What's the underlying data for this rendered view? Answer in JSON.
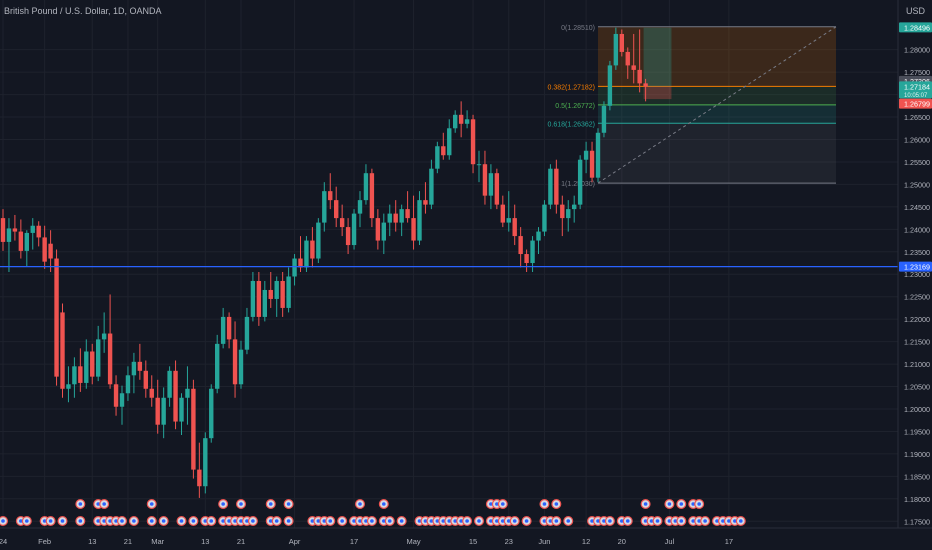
{
  "header": {
    "symbol_title": "British Pound / U.S. Dollar, 1D, OANDA",
    "currency": "USD"
  },
  "colors": {
    "background": "#131722",
    "up": "#26a69a",
    "down": "#ef5350",
    "axis_text": "#b2b5be",
    "support_line": "#2962ff"
  },
  "chart_data": {
    "type": "candlestick",
    "title": "British Pound / U.S. Dollar, 1D, OANDA",
    "y_axis": {
      "label": "USD",
      "ylim": [
        1.1735,
        1.2875
      ],
      "ticks": [
        1.28,
        1.275,
        1.27,
        1.265,
        1.26,
        1.255,
        1.25,
        1.245,
        1.24,
        1.235,
        1.23,
        1.225,
        1.22,
        1.215,
        1.21,
        1.205,
        1.2,
        1.195,
        1.19,
        1.185,
        1.18,
        1.175
      ]
    },
    "x_axis": {
      "ticks": [
        {
          "label": "24",
          "index": 0
        },
        {
          "label": "Feb",
          "index": 7
        },
        {
          "label": "13",
          "index": 15
        },
        {
          "label": "21",
          "index": 21
        },
        {
          "label": "Mar",
          "index": 26
        },
        {
          "label": "13",
          "index": 34
        },
        {
          "label": "21",
          "index": 40
        },
        {
          "label": "Apr",
          "index": 49
        },
        {
          "label": "17",
          "index": 59
        },
        {
          "label": "May",
          "index": 69
        },
        {
          "label": "15",
          "index": 79
        },
        {
          "label": "23",
          "index": 85
        },
        {
          "label": "Jun",
          "index": 91
        },
        {
          "label": "12",
          "index": 98
        },
        {
          "label": "20",
          "index": 104
        },
        {
          "label": "Jul",
          "index": 112
        },
        {
          "label": "17",
          "index": 122
        }
      ]
    },
    "candles": [
      {
        "o": 1.2425,
        "h": 1.2445,
        "l": 1.2352,
        "c": 1.2372
      },
      {
        "o": 1.2372,
        "h": 1.2425,
        "l": 1.2305,
        "c": 1.2402
      },
      {
        "o": 1.2402,
        "h": 1.2432,
        "l": 1.2375,
        "c": 1.2395
      },
      {
        "o": 1.2395,
        "h": 1.2422,
        "l": 1.2335,
        "c": 1.2352
      },
      {
        "o": 1.2352,
        "h": 1.2398,
        "l": 1.2318,
        "c": 1.2392
      },
      {
        "o": 1.2392,
        "h": 1.2425,
        "l": 1.2355,
        "c": 1.2408
      },
      {
        "o": 1.2408,
        "h": 1.2418,
        "l": 1.2362,
        "c": 1.2382
      },
      {
        "o": 1.2382,
        "h": 1.2408,
        "l": 1.2312,
        "c": 1.2328
      },
      {
        "o": 1.2368,
        "h": 1.2398,
        "l": 1.2305,
        "c": 1.2335
      },
      {
        "o": 1.2335,
        "h": 1.2355,
        "l": 1.2052,
        "c": 1.2072
      },
      {
        "o": 1.2215,
        "h": 1.2235,
        "l": 1.2025,
        "c": 1.2045
      },
      {
        "o": 1.2045,
        "h": 1.2095,
        "l": 1.2015,
        "c": 1.2055
      },
      {
        "o": 1.2055,
        "h": 1.2115,
        "l": 1.2025,
        "c": 1.2095
      },
      {
        "o": 1.2095,
        "h": 1.2135,
        "l": 1.2038,
        "c": 1.2058
      },
      {
        "o": 1.2058,
        "h": 1.2155,
        "l": 1.2045,
        "c": 1.2128
      },
      {
        "o": 1.2128,
        "h": 1.2145,
        "l": 1.2055,
        "c": 1.2072
      },
      {
        "o": 1.2072,
        "h": 1.2185,
        "l": 1.2062,
        "c": 1.2155
      },
      {
        "o": 1.2155,
        "h": 1.2215,
        "l": 1.2125,
        "c": 1.2168
      },
      {
        "o": 1.2168,
        "h": 1.2255,
        "l": 1.2045,
        "c": 1.2055
      },
      {
        "o": 1.2055,
        "h": 1.2075,
        "l": 1.1985,
        "c": 1.2005
      },
      {
        "o": 1.2005,
        "h": 1.2052,
        "l": 1.1965,
        "c": 1.2035
      },
      {
        "o": 1.2035,
        "h": 1.2095,
        "l": 1.2018,
        "c": 1.2075
      },
      {
        "o": 1.2075,
        "h": 1.2125,
        "l": 1.2035,
        "c": 1.2105
      },
      {
        "o": 1.2105,
        "h": 1.2145,
        "l": 1.2065,
        "c": 1.2085
      },
      {
        "o": 1.2085,
        "h": 1.2108,
        "l": 1.2025,
        "c": 1.2045
      },
      {
        "o": 1.2045,
        "h": 1.2075,
        "l": 1.2005,
        "c": 1.2025
      },
      {
        "o": 1.2025,
        "h": 1.2065,
        "l": 1.1945,
        "c": 1.1965
      },
      {
        "o": 1.1965,
        "h": 1.2048,
        "l": 1.1935,
        "c": 1.2025
      },
      {
        "o": 1.2025,
        "h": 1.2095,
        "l": 1.2005,
        "c": 1.2085
      },
      {
        "o": 1.2085,
        "h": 1.2108,
        "l": 1.1955,
        "c": 1.1972
      },
      {
        "o": 1.1972,
        "h": 1.2035,
        "l": 1.1942,
        "c": 1.2025
      },
      {
        "o": 1.2025,
        "h": 1.2095,
        "l": 1.1965,
        "c": 1.2045
      },
      {
        "o": 1.2045,
        "h": 1.2065,
        "l": 1.1845,
        "c": 1.1865
      },
      {
        "o": 1.1865,
        "h": 1.1925,
        "l": 1.1802,
        "c": 1.1828
      },
      {
        "o": 1.1828,
        "h": 1.1948,
        "l": 1.1812,
        "c": 1.1935
      },
      {
        "o": 1.1935,
        "h": 1.2055,
        "l": 1.1925,
        "c": 1.2045
      },
      {
        "o": 1.2045,
        "h": 1.2165,
        "l": 1.2035,
        "c": 1.2145
      },
      {
        "o": 1.2145,
        "h": 1.2225,
        "l": 1.2135,
        "c": 1.2205
      },
      {
        "o": 1.2205,
        "h": 1.2215,
        "l": 1.2135,
        "c": 1.2155
      },
      {
        "o": 1.2155,
        "h": 1.2195,
        "l": 1.2025,
        "c": 1.2055
      },
      {
        "o": 1.2055,
        "h": 1.2152,
        "l": 1.2045,
        "c": 1.2132
      },
      {
        "o": 1.2132,
        "h": 1.2225,
        "l": 1.2122,
        "c": 1.2205
      },
      {
        "o": 1.2205,
        "h": 1.2305,
        "l": 1.2195,
        "c": 1.2285
      },
      {
        "o": 1.2285,
        "h": 1.2305,
        "l": 1.2185,
        "c": 1.2205
      },
      {
        "o": 1.2205,
        "h": 1.2285,
        "l": 1.2195,
        "c": 1.2265
      },
      {
        "o": 1.2265,
        "h": 1.2305,
        "l": 1.2225,
        "c": 1.2245
      },
      {
        "o": 1.2245,
        "h": 1.2295,
        "l": 1.2205,
        "c": 1.2285
      },
      {
        "o": 1.2285,
        "h": 1.2305,
        "l": 1.2205,
        "c": 1.2225
      },
      {
        "o": 1.2225,
        "h": 1.2315,
        "l": 1.2215,
        "c": 1.2295
      },
      {
        "o": 1.2295,
        "h": 1.2345,
        "l": 1.2275,
        "c": 1.2335
      },
      {
        "o": 1.2335,
        "h": 1.2385,
        "l": 1.2305,
        "c": 1.2315
      },
      {
        "o": 1.2315,
        "h": 1.2385,
        "l": 1.2305,
        "c": 1.2375
      },
      {
        "o": 1.2375,
        "h": 1.2405,
        "l": 1.2315,
        "c": 1.2335
      },
      {
        "o": 1.2335,
        "h": 1.2425,
        "l": 1.2325,
        "c": 1.2415
      },
      {
        "o": 1.2415,
        "h": 1.2505,
        "l": 1.2395,
        "c": 1.2485
      },
      {
        "o": 1.2485,
        "h": 1.2525,
        "l": 1.2445,
        "c": 1.2465
      },
      {
        "o": 1.2465,
        "h": 1.2495,
        "l": 1.2405,
        "c": 1.2425
      },
      {
        "o": 1.2425,
        "h": 1.2455,
        "l": 1.2385,
        "c": 1.2405
      },
      {
        "o": 1.2405,
        "h": 1.2425,
        "l": 1.2345,
        "c": 1.2365
      },
      {
        "o": 1.2365,
        "h": 1.2445,
        "l": 1.2355,
        "c": 1.2435
      },
      {
        "o": 1.2435,
        "h": 1.2485,
        "l": 1.2405,
        "c": 1.2465
      },
      {
        "o": 1.2465,
        "h": 1.2545,
        "l": 1.2455,
        "c": 1.2525
      },
      {
        "o": 1.2525,
        "h": 1.2535,
        "l": 1.2405,
        "c": 1.2425
      },
      {
        "o": 1.2425,
        "h": 1.2445,
        "l": 1.2355,
        "c": 1.2375
      },
      {
        "o": 1.2375,
        "h": 1.2435,
        "l": 1.2345,
        "c": 1.2415
      },
      {
        "o": 1.2415,
        "h": 1.2455,
        "l": 1.2385,
        "c": 1.2435
      },
      {
        "o": 1.2435,
        "h": 1.2465,
        "l": 1.2395,
        "c": 1.2415
      },
      {
        "o": 1.2415,
        "h": 1.2455,
        "l": 1.2385,
        "c": 1.2445
      },
      {
        "o": 1.2445,
        "h": 1.2485,
        "l": 1.2415,
        "c": 1.2425
      },
      {
        "o": 1.2425,
        "h": 1.2475,
        "l": 1.2355,
        "c": 1.2375
      },
      {
        "o": 1.2375,
        "h": 1.2485,
        "l": 1.2365,
        "c": 1.2465
      },
      {
        "o": 1.2465,
        "h": 1.2505,
        "l": 1.2435,
        "c": 1.2455
      },
      {
        "o": 1.2455,
        "h": 1.2555,
        "l": 1.2445,
        "c": 1.2535
      },
      {
        "o": 1.2535,
        "h": 1.2595,
        "l": 1.2525,
        "c": 1.2585
      },
      {
        "o": 1.2585,
        "h": 1.2615,
        "l": 1.2555,
        "c": 1.2565
      },
      {
        "o": 1.2565,
        "h": 1.2645,
        "l": 1.2555,
        "c": 1.2625
      },
      {
        "o": 1.2625,
        "h": 1.2665,
        "l": 1.2615,
        "c": 1.2655
      },
      {
        "o": 1.2655,
        "h": 1.2685,
        "l": 1.2605,
        "c": 1.2635
      },
      {
        "o": 1.2635,
        "h": 1.2665,
        "l": 1.2625,
        "c": 1.2645
      },
      {
        "o": 1.2645,
        "h": 1.2655,
        "l": 1.2525,
        "c": 1.2545
      },
      {
        "o": 1.2545,
        "h": 1.2575,
        "l": 1.2505,
        "c": 1.2545
      },
      {
        "o": 1.2545,
        "h": 1.2575,
        "l": 1.2455,
        "c": 1.2475
      },
      {
        "o": 1.2475,
        "h": 1.2545,
        "l": 1.2445,
        "c": 1.2525
      },
      {
        "o": 1.2525,
        "h": 1.2535,
        "l": 1.2445,
        "c": 1.2455
      },
      {
        "o": 1.2455,
        "h": 1.2475,
        "l": 1.2405,
        "c": 1.2415
      },
      {
        "o": 1.2415,
        "h": 1.2485,
        "l": 1.2395,
        "c": 1.2425
      },
      {
        "o": 1.2425,
        "h": 1.2455,
        "l": 1.2365,
        "c": 1.2385
      },
      {
        "o": 1.2385,
        "h": 1.2405,
        "l": 1.2315,
        "c": 1.2345
      },
      {
        "o": 1.2345,
        "h": 1.2355,
        "l": 1.2305,
        "c": 1.2325
      },
      {
        "o": 1.2325,
        "h": 1.2385,
        "l": 1.2305,
        "c": 1.2375
      },
      {
        "o": 1.2375,
        "h": 1.2405,
        "l": 1.2345,
        "c": 1.2395
      },
      {
        "o": 1.2395,
        "h": 1.2465,
        "l": 1.2385,
        "c": 1.2455
      },
      {
        "o": 1.2455,
        "h": 1.2545,
        "l": 1.2445,
        "c": 1.2535
      },
      {
        "o": 1.2535,
        "h": 1.2555,
        "l": 1.2435,
        "c": 1.2455
      },
      {
        "o": 1.2455,
        "h": 1.2475,
        "l": 1.2385,
        "c": 1.2425
      },
      {
        "o": 1.2425,
        "h": 1.2465,
        "l": 1.2395,
        "c": 1.2445
      },
      {
        "o": 1.2445,
        "h": 1.2475,
        "l": 1.2415,
        "c": 1.2455
      },
      {
        "o": 1.2455,
        "h": 1.2565,
        "l": 1.2445,
        "c": 1.2555
      },
      {
        "o": 1.2555,
        "h": 1.2595,
        "l": 1.2525,
        "c": 1.2575
      },
      {
        "o": 1.2575,
        "h": 1.2595,
        "l": 1.2505,
        "c": 1.2515
      },
      {
        "o": 1.2515,
        "h": 1.2625,
        "l": 1.2505,
        "c": 1.2615
      },
      {
        "o": 1.2615,
        "h": 1.2685,
        "l": 1.2605,
        "c": 1.2675
      },
      {
        "o": 1.2675,
        "h": 1.2775,
        "l": 1.2665,
        "c": 1.2765
      },
      {
        "o": 1.2765,
        "h": 1.2849,
        "l": 1.2755,
        "c": 1.2835
      },
      {
        "o": 1.2835,
        "h": 1.2845,
        "l": 1.2785,
        "c": 1.2795
      },
      {
        "o": 1.2795,
        "h": 1.2805,
        "l": 1.2735,
        "c": 1.2765
      },
      {
        "o": 1.2765,
        "h": 1.2835,
        "l": 1.2725,
        "c": 1.2755
      },
      {
        "o": 1.2755,
        "h": 1.2845,
        "l": 1.2705,
        "c": 1.2725
      },
      {
        "o": 1.2725,
        "h": 1.2735,
        "l": 1.2685,
        "c": 1.2718
      }
    ],
    "horizontal_line": {
      "price": 1.23169,
      "label": "1.23169",
      "color": "#2962ff"
    },
    "fibonacci": {
      "levels": [
        {
          "ratio": "0",
          "price": 1.2851,
          "label": "0(1.28510)",
          "color": "#787b86"
        },
        {
          "ratio": "0.382",
          "price": 1.27182,
          "label": "0.382(1.27182)",
          "color": "#f57c00"
        },
        {
          "ratio": "0.5",
          "price": 1.26772,
          "label": "0.5(1.26772)",
          "color": "#4caf50"
        },
        {
          "ratio": "0.618",
          "price": 1.26362,
          "label": "0.618(1.26362)",
          "color": "#26a69a"
        },
        {
          "ratio": "1",
          "price": 1.2503,
          "label": "1(1.25030)",
          "color": "#787b86"
        }
      ],
      "start_index": 100,
      "end_index": 140
    },
    "position_box": {
      "start_index": 108,
      "end_index": 111,
      "entry": 1.2718,
      "target": 1.2849,
      "stop": 1.269
    },
    "price_labels": [
      {
        "price": 1.28496,
        "label": "1.28496",
        "bg": "#26a69a",
        "fg": "#ffffff"
      },
      {
        "price": 1.27306,
        "label": "1.27306",
        "bg": "#4a4e5a",
        "fg": "#ffffff"
      },
      {
        "price": 1.27184,
        "label": "1.27184",
        "sub": "10:05:07",
        "bg": "#26a69a",
        "fg": "#ffffff"
      },
      {
        "price": 1.26799,
        "label": "1.26799",
        "bg": "#ef5350",
        "fg": "#ffffff"
      },
      {
        "price": 1.23169,
        "label": "1.23169",
        "bg": "#2962ff",
        "fg": "#ffffff"
      }
    ],
    "event_icons": [
      {
        "index": 0,
        "stack": 1
      },
      {
        "index": 3,
        "stack": 1
      },
      {
        "index": 4,
        "stack": 1
      },
      {
        "index": 7,
        "stack": 1
      },
      {
        "index": 8,
        "stack": 1
      },
      {
        "index": 10,
        "stack": 1
      },
      {
        "index": 13,
        "stack": 2
      },
      {
        "index": 16,
        "stack": 2
      },
      {
        "index": 17,
        "stack": 2
      },
      {
        "index": 18,
        "stack": 1
      },
      {
        "index": 19,
        "stack": 1
      },
      {
        "index": 20,
        "stack": 1
      },
      {
        "index": 22,
        "stack": 1
      },
      {
        "index": 25,
        "stack": 2
      },
      {
        "index": 27,
        "stack": 1
      },
      {
        "index": 30,
        "stack": 1
      },
      {
        "index": 32,
        "stack": 1
      },
      {
        "index": 34,
        "stack": 1
      },
      {
        "index": 35,
        "stack": 1
      },
      {
        "index": 37,
        "stack": 2
      },
      {
        "index": 38,
        "stack": 1
      },
      {
        "index": 39,
        "stack": 1
      },
      {
        "index": 40,
        "stack": 2
      },
      {
        "index": 41,
        "stack": 1
      },
      {
        "index": 42,
        "stack": 1
      },
      {
        "index": 45,
        "stack": 2
      },
      {
        "index": 46,
        "stack": 1
      },
      {
        "index": 48,
        "stack": 2
      },
      {
        "index": 52,
        "stack": 1
      },
      {
        "index": 53,
        "stack": 1
      },
      {
        "index": 54,
        "stack": 1
      },
      {
        "index": 55,
        "stack": 1
      },
      {
        "index": 57,
        "stack": 1
      },
      {
        "index": 59,
        "stack": 1
      },
      {
        "index": 60,
        "stack": 2
      },
      {
        "index": 61,
        "stack": 1
      },
      {
        "index": 62,
        "stack": 1
      },
      {
        "index": 64,
        "stack": 2
      },
      {
        "index": 65,
        "stack": 1
      },
      {
        "index": 67,
        "stack": 1
      },
      {
        "index": 70,
        "stack": 1
      },
      {
        "index": 71,
        "stack": 1
      },
      {
        "index": 72,
        "stack": 1
      },
      {
        "index": 73,
        "stack": 1
      },
      {
        "index": 74,
        "stack": 1
      },
      {
        "index": 75,
        "stack": 1
      },
      {
        "index": 76,
        "stack": 1
      },
      {
        "index": 77,
        "stack": 1
      },
      {
        "index": 78,
        "stack": 1
      },
      {
        "index": 80,
        "stack": 1
      },
      {
        "index": 82,
        "stack": 2
      },
      {
        "index": 83,
        "stack": 2
      },
      {
        "index": 84,
        "stack": 2
      },
      {
        "index": 85,
        "stack": 1
      },
      {
        "index": 86,
        "stack": 1
      },
      {
        "index": 88,
        "stack": 1
      },
      {
        "index": 91,
        "stack": 2
      },
      {
        "index": 92,
        "stack": 1
      },
      {
        "index": 93,
        "stack": 2
      },
      {
        "index": 95,
        "stack": 1
      },
      {
        "index": 99,
        "stack": 1
      },
      {
        "index": 100,
        "stack": 1
      },
      {
        "index": 101,
        "stack": 1
      },
      {
        "index": 102,
        "stack": 1
      },
      {
        "index": 104,
        "stack": 1
      },
      {
        "index": 105,
        "stack": 1
      },
      {
        "index": 108,
        "stack": 2
      },
      {
        "index": 109,
        "stack": 1
      },
      {
        "index": 110,
        "stack": 1
      },
      {
        "index": 112,
        "stack": 2
      },
      {
        "index": 113,
        "stack": 1
      },
      {
        "index": 114,
        "stack": 2
      },
      {
        "index": 116,
        "stack": 2
      },
      {
        "index": 117,
        "stack": 2
      },
      {
        "index": 118,
        "stack": 1
      },
      {
        "index": 120,
        "stack": 1
      },
      {
        "index": 121,
        "stack": 1
      },
      {
        "index": 122,
        "stack": 1
      },
      {
        "index": 123,
        "stack": 1
      },
      {
        "index": 124,
        "stack": 1
      }
    ]
  }
}
